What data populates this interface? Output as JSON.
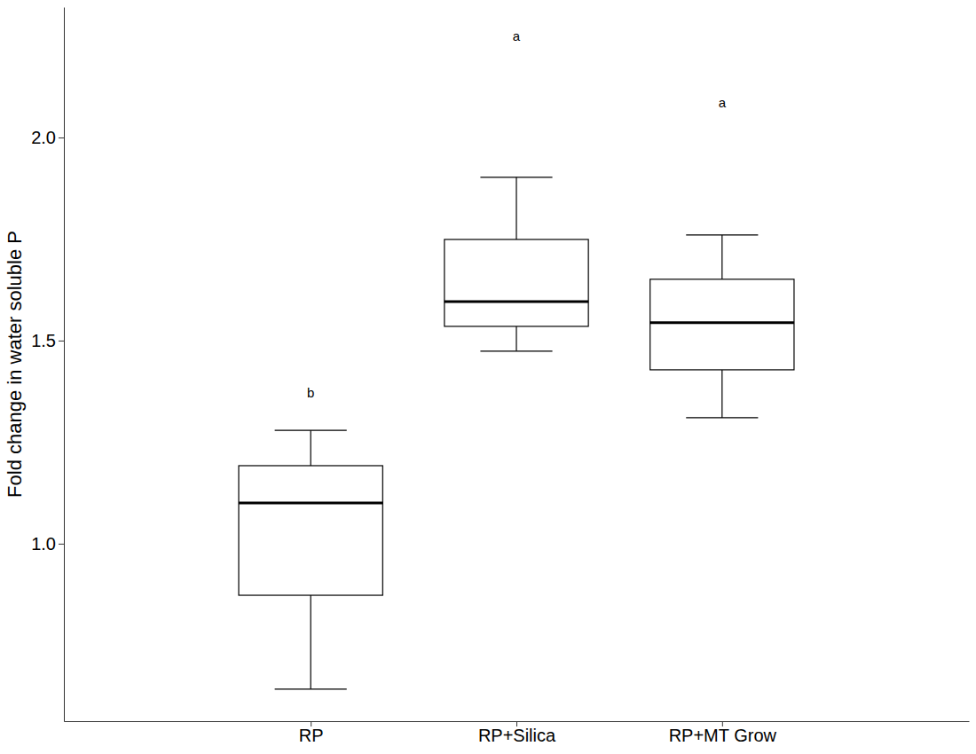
{
  "chart_data": {
    "type": "box",
    "ylabel": "Fold change in water soluble P",
    "categories": [
      "RP",
      "RP+Silica",
      "RP+MT Grow"
    ],
    "whisker_low": [
      0.642,
      1.474,
      1.31
    ],
    "q1": [
      0.873,
      1.535,
      1.428
    ],
    "median": [
      1.1,
      1.596,
      1.544
    ],
    "q3": [
      1.192,
      1.749,
      1.651
    ],
    "whisker_high": [
      1.279,
      1.902,
      1.76
    ],
    "annotations": [
      {
        "text": "b",
        "x": "RP",
        "y": 1.373
      },
      {
        "text": "a",
        "x": "RP+Silica",
        "y": 2.251
      },
      {
        "text": "a",
        "x": "RP+MT Grow",
        "y": 2.087
      }
    ],
    "ylim": [
      0.563,
      2.321
    ],
    "yticks": [
      {
        "value": 1,
        "label": "1.0"
      },
      {
        "value": 1.5,
        "label": "1.5"
      },
      {
        "value": 2,
        "label": "2.0"
      }
    ],
    "color": "#000000"
  }
}
